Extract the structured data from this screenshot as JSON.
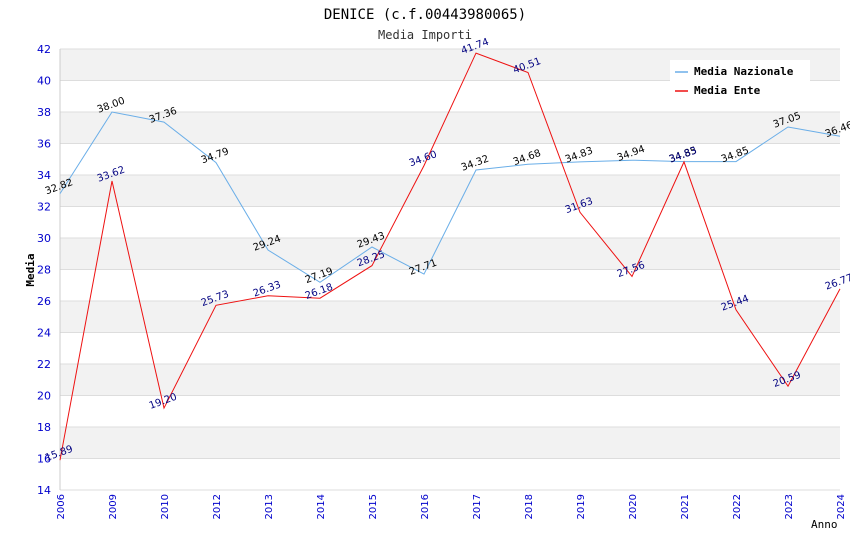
{
  "chart_data": {
    "type": "line",
    "title": "DENICE (c.f.00443980065)",
    "subtitle": "Media Importi",
    "ylabel": "Media",
    "xlabel": "Anno",
    "ylim": [
      14,
      42
    ],
    "ytick_step": 2,
    "categories": [
      "2006",
      "2009",
      "2010",
      "2012",
      "2013",
      "2014",
      "2015",
      "2016",
      "2017",
      "2018",
      "2019",
      "2020",
      "2021",
      "2022",
      "2023",
      "2024"
    ],
    "series": [
      {
        "name": "Media Nazionale",
        "color": "#6aaee8",
        "values": [
          32.82,
          38.0,
          37.36,
          34.79,
          29.24,
          27.19,
          29.43,
          27.71,
          34.32,
          34.68,
          34.83,
          34.94,
          34.85,
          34.85,
          37.05,
          36.46
        ],
        "labels": [
          "32.82",
          "38.00",
          "37.36",
          "34.79",
          "29.24",
          "27.19",
          "29.43",
          "27.71",
          "34.32",
          "34.68",
          "34.83",
          "34.94",
          "34.85",
          "34.85",
          "37.05",
          "36.46"
        ]
      },
      {
        "name": "Media Ente",
        "color": "#ee1111",
        "values": [
          15.89,
          33.62,
          19.2,
          25.73,
          26.33,
          26.18,
          28.25,
          34.6,
          41.74,
          40.51,
          31.63,
          27.56,
          34.83,
          25.44,
          20.59,
          26.77
        ],
        "labels": [
          "15.89",
          "33.62",
          "19.20",
          "25.73",
          "26.33",
          "26.18",
          "28.25",
          "34.60",
          "41.74",
          "40.51",
          "31.63",
          "27.56",
          "34.83",
          "25.44",
          "20.59",
          "26.77"
        ]
      }
    ],
    "legend": "top-right",
    "grid": true
  }
}
